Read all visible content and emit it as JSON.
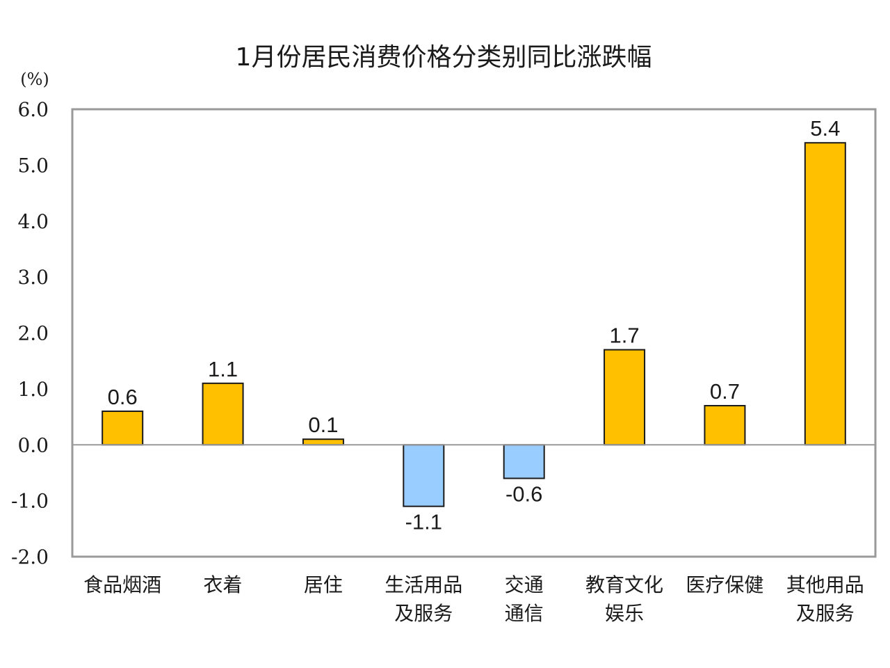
{
  "chart_data": {
    "type": "bar",
    "title": "1月份居民消费价格分类别同比涨跌幅",
    "unit": "(%)",
    "ylim": [
      -2.0,
      6.0
    ],
    "yticks": [
      "6.0",
      "5.0",
      "4.0",
      "3.0",
      "2.0",
      "1.0",
      "0.0",
      "-1.0",
      "-2.0"
    ],
    "grid": false,
    "categories": [
      [
        "食品烟酒"
      ],
      [
        "衣着"
      ],
      [
        "居住"
      ],
      [
        "生活用品",
        "及服务"
      ],
      [
        "交通",
        "通信"
      ],
      [
        "教育文化",
        "娱乐"
      ],
      [
        "医疗保健"
      ],
      [
        "其他用品",
        "及服务"
      ]
    ],
    "values": [
      0.6,
      1.1,
      0.1,
      -1.1,
      -0.6,
      1.7,
      0.7,
      5.4
    ],
    "value_labels": [
      "0.6",
      "1.1",
      "0.1",
      "-1.1",
      "-0.6",
      "1.7",
      "0.7",
      "5.4"
    ],
    "colors": {
      "positive": "#FFC000",
      "negative": "#99CCFF",
      "border": "#1a1a1a",
      "frame": "#999999"
    }
  }
}
